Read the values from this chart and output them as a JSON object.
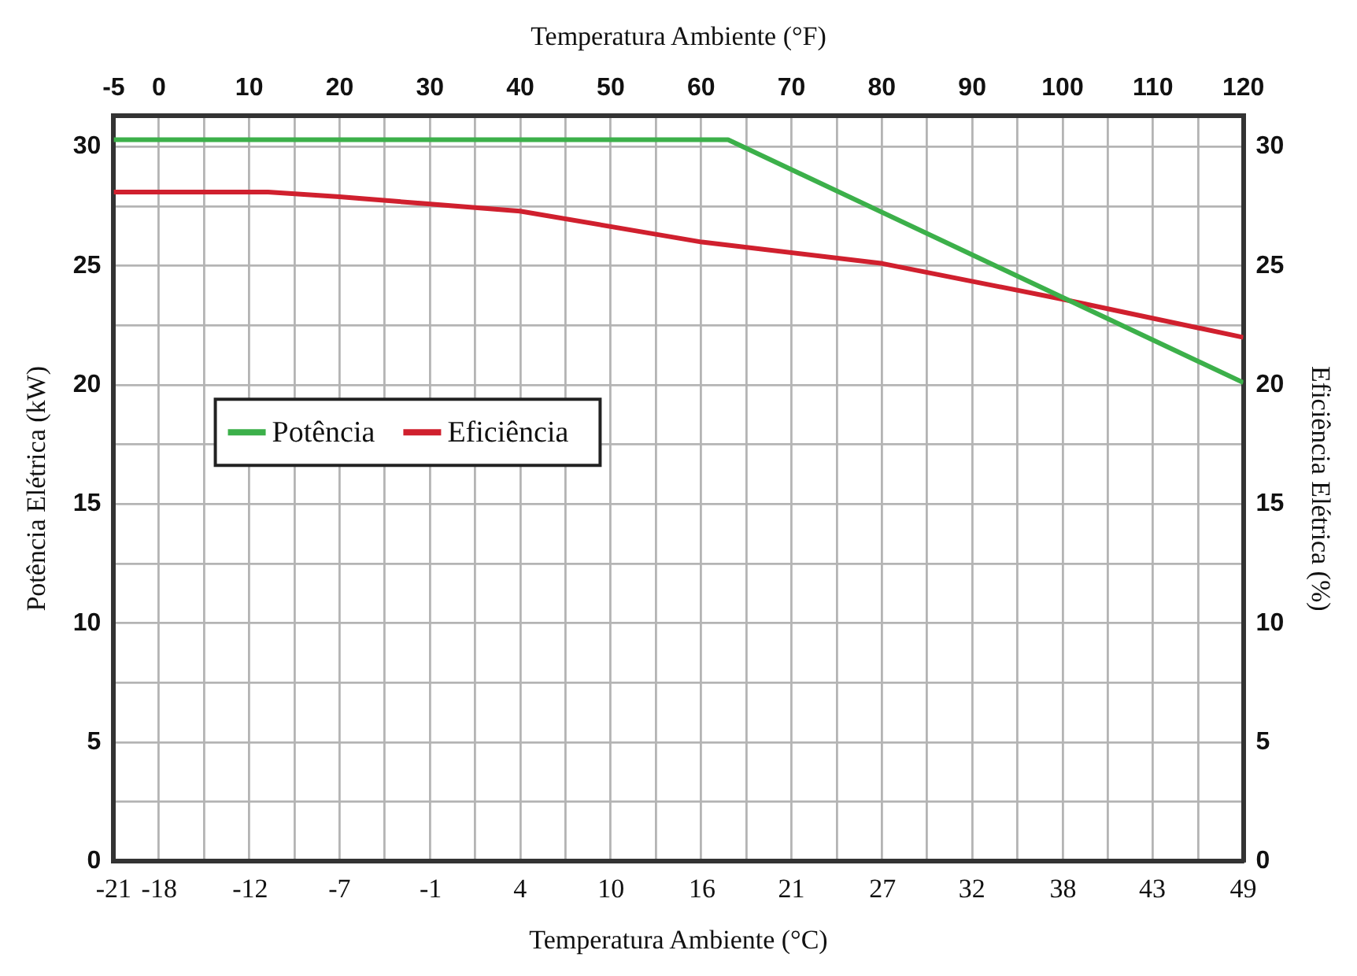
{
  "chart_data": {
    "type": "line",
    "xlabel": "Temperatura Ambiente (°C)",
    "x2label": "Temperatura Ambiente (°F)",
    "ylabel": "Potência Elétrica (kW)",
    "y2label": "Eficiência Elétrica (%)",
    "xlim": [
      -20.6,
      48.9
    ],
    "xticks": [
      {
        "value": -20.6,
        "label": "-21"
      },
      {
        "value": -17.8,
        "label": "-18"
      },
      {
        "value": -12.2,
        "label": "-12"
      },
      {
        "value": -6.7,
        "label": "-7"
      },
      {
        "value": -1.1,
        "label": "-1"
      },
      {
        "value": 4.4,
        "label": "4"
      },
      10,
      {
        "value": 15.6,
        "label": "16"
      },
      {
        "value": 21.1,
        "label": "21"
      },
      {
        "value": 26.7,
        "label": "27"
      },
      {
        "value": 32.2,
        "label": "32"
      },
      {
        "value": 37.8,
        "label": "38"
      },
      {
        "value": 43.3,
        "label": "43"
      },
      {
        "value": 48.9,
        "label": "49"
      }
    ],
    "x2lim": [
      -5,
      120
    ],
    "x2ticks": [
      -5,
      0,
      {
        "value": 5,
        "label": null
      },
      10,
      {
        "value": 15,
        "label": null
      },
      20,
      {
        "value": 25,
        "label": null
      },
      30,
      {
        "value": 35,
        "label": null
      },
      40,
      {
        "value": 45,
        "label": null
      },
      50,
      {
        "value": 55,
        "label": null
      },
      60,
      {
        "value": 65,
        "label": null
      },
      70,
      {
        "value": 75,
        "label": null
      },
      80,
      {
        "value": 85,
        "label": null
      },
      90,
      {
        "value": 95,
        "label": null
      },
      100,
      {
        "value": 105,
        "label": null
      },
      110,
      {
        "value": 115,
        "label": null
      },
      120
    ],
    "ylim": [
      0,
      31.3
    ],
    "yticks": [
      0,
      {
        "value": 2.5,
        "label": null
      },
      5,
      {
        "value": 7.5,
        "label": null
      },
      10,
      {
        "value": 12.5,
        "label": null
      },
      15,
      {
        "value": 17.5,
        "label": null
      },
      20,
      {
        "value": 22.5,
        "label": null
      },
      25,
      {
        "value": 27.5,
        "label": null
      },
      30
    ],
    "y2lim": [
      0,
      31.3
    ],
    "y2ticks": [
      0,
      5,
      10,
      15,
      20,
      25,
      30
    ],
    "grid": true,
    "legend": "left",
    "series": [
      {
        "name": "Potência",
        "color": "#3cb04a",
        "x": [
          -20.6,
          17.2,
          48.9
        ],
        "values": [
          30.3,
          30.3,
          20.1
        ]
      },
      {
        "name": "Eficiência",
        "color": "#d0202e",
        "axis": "y2",
        "x": [
          -20.6,
          -11.1,
          -6.7,
          4.4,
          15.6,
          26.7,
          37.8,
          48.9
        ],
        "values": [
          28.1,
          28.1,
          27.9,
          27.3,
          26.0,
          25.1,
          23.6,
          22.0
        ]
      }
    ]
  }
}
